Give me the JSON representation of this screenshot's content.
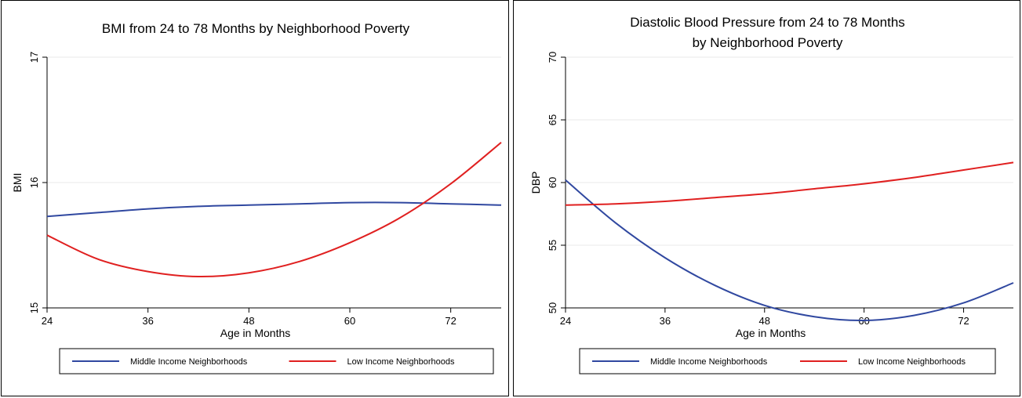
{
  "chart_data": [
    {
      "type": "line",
      "title": [
        "BMI from 24 to 78 Months by Neighborhood Poverty"
      ],
      "xlabel": "Age in Months",
      "ylabel": "BMI",
      "xlim": [
        24,
        78
      ],
      "ylim": [
        15,
        17
      ],
      "xticks": [
        24,
        36,
        48,
        60,
        72
      ],
      "yticks": [
        15,
        16,
        17
      ],
      "grid": "horizontal",
      "legend_position": "bottom",
      "series": [
        {
          "name": "Middle Income Neighborhoods",
          "color": "#3048a0",
          "x": [
            24,
            30,
            36,
            42,
            48,
            54,
            60,
            66,
            72,
            78
          ],
          "y": [
            15.73,
            15.76,
            15.79,
            15.81,
            15.82,
            15.83,
            15.84,
            15.84,
            15.83,
            15.82
          ]
        },
        {
          "name": "Low Income Neighborhoods",
          "color": "#e02020",
          "x": [
            24,
            30,
            36,
            42,
            48,
            54,
            60,
            66,
            72,
            78
          ],
          "y": [
            15.58,
            15.39,
            15.29,
            15.25,
            15.28,
            15.37,
            15.52,
            15.72,
            15.99,
            16.32
          ]
        }
      ]
    },
    {
      "type": "line",
      "title": [
        "Diastolic Blood Pressure from 24 to 78 Months",
        "by Neighborhood Poverty"
      ],
      "xlabel": "Age in Months",
      "ylabel": "DBP",
      "xlim": [
        24,
        78
      ],
      "ylim": [
        50,
        70
      ],
      "xticks": [
        24,
        36,
        48,
        60,
        72
      ],
      "yticks": [
        50,
        55,
        60,
        65,
        70
      ],
      "grid": "horizontal",
      "legend_position": "bottom",
      "series": [
        {
          "name": "Middle Income Neighborhoods",
          "color": "#3048a0",
          "x": [
            24,
            30,
            36,
            42,
            48,
            54,
            60,
            66,
            72,
            78
          ],
          "y": [
            60.2,
            56.8,
            54.0,
            51.8,
            50.2,
            49.3,
            49.0,
            49.4,
            50.4,
            52.0
          ]
        },
        {
          "name": "Low Income Neighborhoods",
          "color": "#e02020",
          "x": [
            24,
            30,
            36,
            42,
            48,
            54,
            60,
            66,
            72,
            78
          ],
          "y": [
            58.2,
            58.3,
            58.5,
            58.8,
            59.1,
            59.5,
            59.9,
            60.4,
            61.0,
            61.6
          ]
        }
      ]
    }
  ]
}
